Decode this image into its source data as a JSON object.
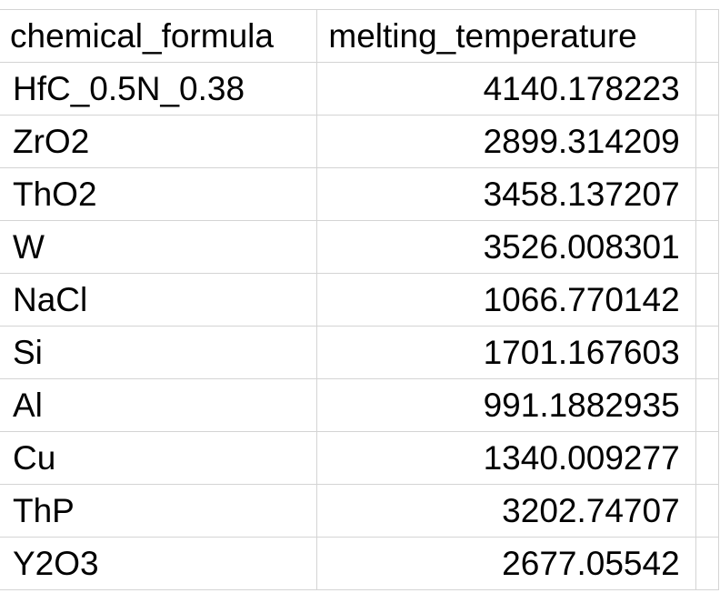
{
  "spreadsheet": {
    "columns": [
      "chemical_formula",
      "melting_temperature"
    ],
    "rows": [
      {
        "chemical_formula": "HfC_0.5N_0.38",
        "melting_temperature": "4140.178223"
      },
      {
        "chemical_formula": "ZrO2",
        "melting_temperature": "2899.314209"
      },
      {
        "chemical_formula": "ThO2",
        "melting_temperature": "3458.137207"
      },
      {
        "chemical_formula": "W",
        "melting_temperature": "3526.008301"
      },
      {
        "chemical_formula": "NaCl",
        "melting_temperature": "1066.770142"
      },
      {
        "chemical_formula": "Si",
        "melting_temperature": "1701.167603"
      },
      {
        "chemical_formula": "Al",
        "melting_temperature": "991.1882935"
      },
      {
        "chemical_formula": "Cu",
        "melting_temperature": "1340.009277"
      },
      {
        "chemical_formula": "ThP",
        "melting_temperature": "3202.74707"
      },
      {
        "chemical_formula": "Y2O3",
        "melting_temperature": "2677.05542"
      }
    ]
  },
  "colors": {
    "gridline": "#d4d4d4",
    "text": "#000000",
    "background": "#ffffff"
  }
}
